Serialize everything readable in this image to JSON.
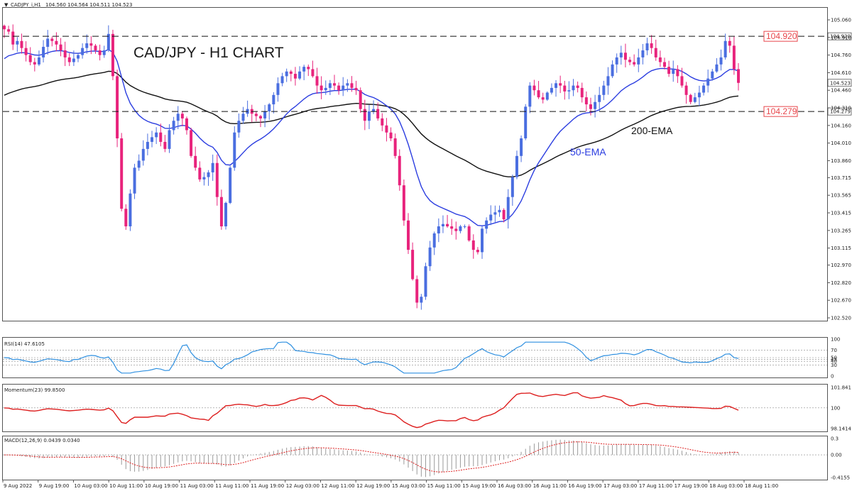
{
  "header": {
    "symbol": "CADJPY_i,H1",
    "ohlc": "104.560 104.564 104.511 104.523"
  },
  "colors": {
    "bull": "#4a6ee0",
    "bear": "#e8237c",
    "ema50": "#2b3de0",
    "ema200": "#111111",
    "rsi": "#2d8fe0",
    "momentum": "#dd1e1e",
    "macd_signal": "#dd1e1e",
    "macd_hist": "#9a9a9a",
    "level": "#e8454a"
  },
  "chart_data": [
    {
      "type": "candlestick",
      "title": "CAD/JPY - H1 CHART",
      "ylim": [
        102.52,
        105.06
      ],
      "y_ticks": [
        "105.060",
        "104.910",
        "104.760",
        "104.610",
        "104.460",
        "104.310",
        "104.160",
        "104.010",
        "103.860",
        "103.715",
        "103.565",
        "103.415",
        "103.265",
        "103.115",
        "102.970",
        "102.820",
        "102.670",
        "102.520"
      ],
      "x_ticks": [
        "9 Aug 2022",
        "9 Aug 19:00",
        "10 Aug 03:00",
        "10 Aug 11:00",
        "10 Aug 19:00",
        "11 Aug 03:00",
        "11 Aug 11:00",
        "11 Aug 19:00",
        "12 Aug 03:00",
        "12 Aug 11:00",
        "12 Aug 19:00",
        "15 Aug 03:00",
        "15 Aug 11:00",
        "15 Aug 19:00",
        "16 Aug 03:00",
        "16 Aug 11:00",
        "16 Aug 19:00",
        "17 Aug 03:00",
        "17 Aug 11:00",
        "17 Aug 19:00",
        "18 Aug 03:00",
        "18 Aug 11:00"
      ],
      "current_price": "104.523",
      "levels": [
        {
          "label": "104.920",
          "value": 104.92
        },
        {
          "label": "104.279",
          "value": 104.279
        }
      ],
      "annotations": {
        "ema50": "50-EMA",
        "ema200": "200-EMA"
      },
      "path": [
        104.98,
        104.96,
        104.85,
        104.88,
        104.82,
        104.76,
        104.7,
        104.68,
        104.74,
        104.83,
        104.9,
        104.88,
        104.85,
        104.8,
        104.74,
        104.7,
        104.73,
        104.76,
        104.82,
        104.86,
        104.84,
        104.8,
        104.76,
        104.8,
        104.94,
        104.58,
        104.05,
        103.45,
        103.3,
        103.58,
        103.8,
        103.86,
        103.96,
        104.02,
        104.06,
        104.1,
        104.02,
        103.96,
        104.12,
        104.2,
        104.26,
        104.22,
        104.12,
        103.9,
        103.8,
        103.7,
        103.72,
        103.76,
        103.84,
        103.55,
        103.3,
        103.5,
        103.8,
        104.1,
        104.2,
        104.26,
        104.3,
        104.26,
        104.24,
        104.22,
        104.28,
        104.34,
        104.42,
        104.52,
        104.58,
        104.62,
        104.6,
        104.56,
        104.62,
        104.66,
        104.64,
        104.58,
        104.5,
        104.46,
        104.48,
        104.52,
        104.5,
        104.46,
        104.5,
        104.52,
        104.48,
        104.46,
        104.3,
        104.2,
        104.28,
        104.3,
        104.22,
        104.16,
        104.1,
        104.05,
        103.9,
        103.65,
        103.35,
        103.1,
        102.85,
        102.65,
        102.7,
        102.96,
        103.12,
        103.24,
        103.3,
        103.32,
        103.3,
        103.28,
        103.26,
        103.3,
        103.3,
        103.18,
        103.1,
        103.08,
        103.28,
        103.35,
        103.4,
        103.42,
        103.44,
        103.36,
        103.55,
        103.72,
        103.9,
        104.05,
        104.32,
        104.5,
        104.46,
        104.4,
        104.38,
        104.44,
        104.48,
        104.52,
        104.5,
        104.45,
        104.46,
        104.5,
        104.48,
        104.4,
        104.34,
        104.3,
        104.36,
        104.42,
        104.5,
        104.58,
        104.68,
        104.74,
        104.78,
        104.72,
        104.7,
        104.68,
        104.74,
        104.8,
        104.86,
        104.82,
        104.74,
        104.7,
        104.66,
        104.6,
        104.64,
        104.58,
        104.5,
        104.42,
        104.36,
        104.4,
        104.44,
        104.5,
        104.56,
        104.62,
        104.68,
        104.74,
        104.88,
        104.84,
        104.64,
        104.523
      ]
    },
    {
      "type": "line",
      "title": "RSI(14) 47.6105",
      "ylim": [
        0,
        100
      ],
      "y_ticks": [
        "100",
        "70",
        "50",
        "45",
        "40",
        "30",
        "0"
      ]
    },
    {
      "type": "line",
      "title": "Momentum(23) 99.8500",
      "y_ticks": [
        "101.841",
        "100",
        "98.1414"
      ]
    },
    {
      "type": "bar",
      "title": "MACD(12,26,9) 0.0439 0.0340",
      "y_ticks": [
        "0.3",
        "0.00",
        "-0.4155"
      ]
    }
  ]
}
